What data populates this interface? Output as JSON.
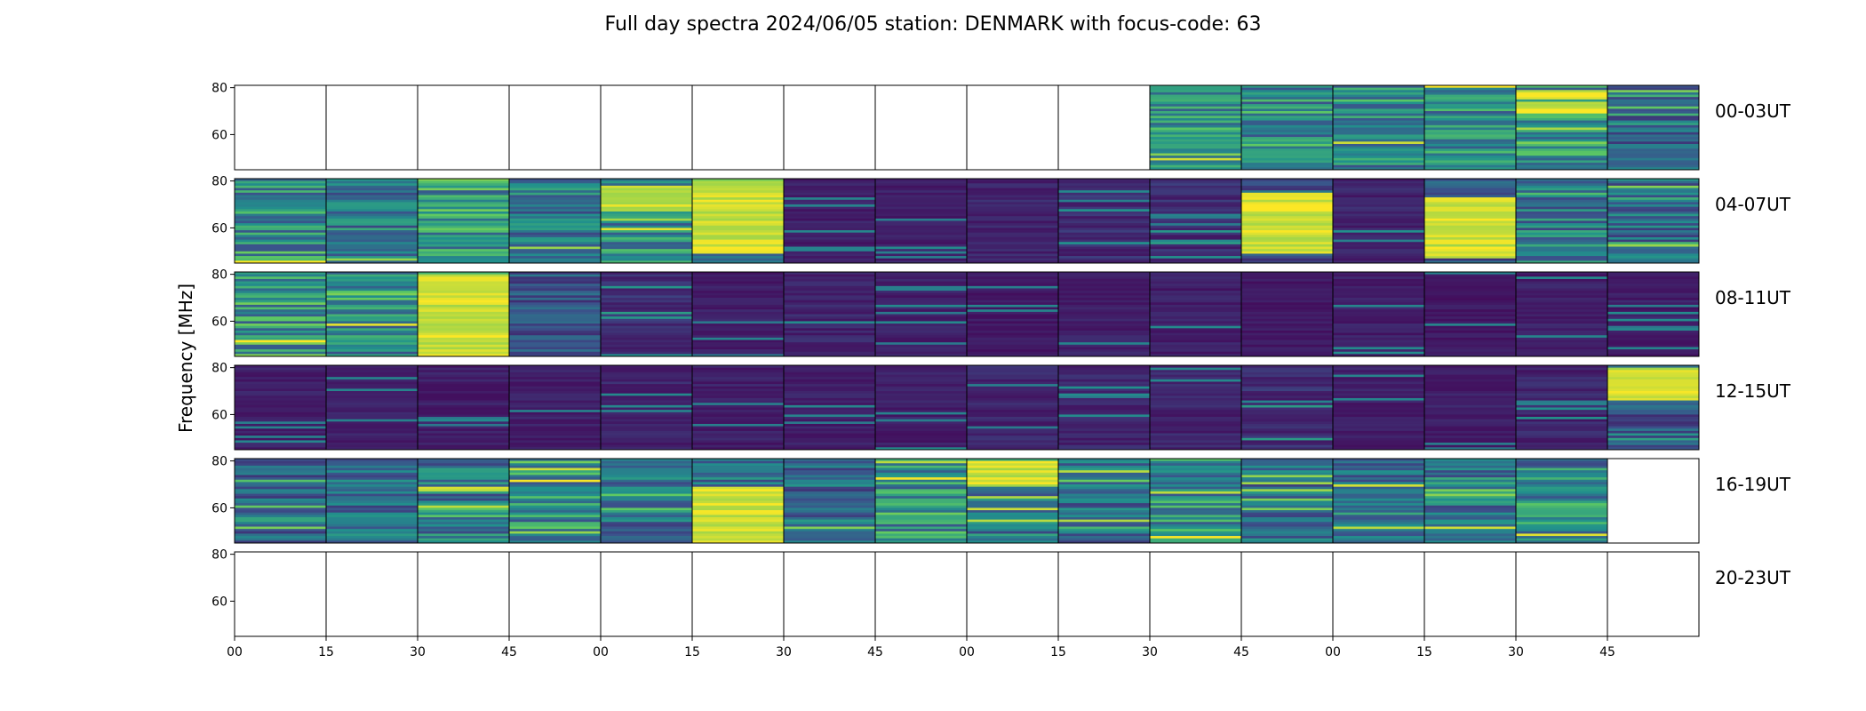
{
  "chart_data": {
    "type": "heatmap",
    "title": "Full day spectra 2024/06/05 station: DENMARK with focus-code: 63",
    "ylabel": "Frequency [MHz]",
    "xlabel": "",
    "ylim": [
      45,
      81
    ],
    "y_ticks": [
      "80",
      "60"
    ],
    "x_tick_labels": [
      "00",
      "15",
      "30",
      "45",
      "00",
      "15",
      "30",
      "45",
      "00",
      "15",
      "30",
      "45",
      "00",
      "15",
      "30",
      "45"
    ],
    "colormap": [
      "#440154",
      "#3b528b",
      "#21918c",
      "#5ec962",
      "#fde725"
    ],
    "rows": [
      {
        "label": "00-03UT",
        "panels": [
          {
            "empty": true
          },
          {
            "empty": true
          },
          {
            "empty": true
          },
          {
            "empty": true
          },
          {
            "empty": true
          },
          {
            "empty": true
          },
          {
            "empty": true
          },
          {
            "empty": true
          },
          {
            "empty": true
          },
          {
            "empty": true
          },
          {
            "level": 0.55
          },
          {
            "level": 0.55
          },
          {
            "level": 0.5
          },
          {
            "level": 0.55
          },
          {
            "level": 0.6,
            "bright_bands": [
              [
                70,
                74
              ],
              [
                76,
                79
              ]
            ]
          },
          {
            "level": 0.35
          }
        ]
      },
      {
        "label": "04-07UT",
        "panels": [
          {
            "level": 0.55
          },
          {
            "level": 0.45
          },
          {
            "level": 0.6
          },
          {
            "level": 0.45
          },
          {
            "level": 0.55,
            "bright_bands": [
              [
                68,
                78
              ]
            ]
          },
          {
            "level": 0.6,
            "bright_bands": [
              [
                50,
                80
              ]
            ]
          },
          {
            "level": 0.1
          },
          {
            "level": 0.1
          },
          {
            "level": 0.12
          },
          {
            "level": 0.15
          },
          {
            "level": 0.15
          },
          {
            "level": 0.3,
            "bright_bands": [
              [
                50,
                75
              ]
            ]
          },
          {
            "level": 0.12
          },
          {
            "level": 0.3,
            "bright_bands": [
              [
                48,
                73
              ]
            ]
          },
          {
            "level": 0.45
          },
          {
            "level": 0.4
          }
        ]
      },
      {
        "label": "08-11UT",
        "panels": [
          {
            "level": 0.6
          },
          {
            "level": 0.5
          },
          {
            "level": 0.7,
            "bright_bands": [
              [
                45,
                80
              ]
            ]
          },
          {
            "level": 0.3
          },
          {
            "level": 0.15
          },
          {
            "level": 0.1
          },
          {
            "level": 0.12
          },
          {
            "level": 0.1
          },
          {
            "level": 0.08
          },
          {
            "level": 0.1
          },
          {
            "level": 0.1
          },
          {
            "level": 0.08
          },
          {
            "level": 0.1
          },
          {
            "level": 0.08
          },
          {
            "level": 0.1
          },
          {
            "level": 0.1
          }
        ]
      },
      {
        "label": "12-15UT",
        "panels": [
          {
            "level": 0.1
          },
          {
            "level": 0.1
          },
          {
            "level": 0.1
          },
          {
            "level": 0.1
          },
          {
            "level": 0.12
          },
          {
            "level": 0.1
          },
          {
            "level": 0.1
          },
          {
            "level": 0.1
          },
          {
            "level": 0.12
          },
          {
            "level": 0.12
          },
          {
            "level": 0.12
          },
          {
            "level": 0.15
          },
          {
            "level": 0.1
          },
          {
            "level": 0.1
          },
          {
            "level": 0.12
          },
          {
            "level": 0.3,
            "bright_bands": [
              [
                67,
                80
              ]
            ]
          }
        ]
      },
      {
        "label": "16-19UT",
        "panels": [
          {
            "level": 0.35
          },
          {
            "level": 0.4
          },
          {
            "level": 0.45
          },
          {
            "level": 0.55
          },
          {
            "level": 0.4
          },
          {
            "level": 0.45,
            "bright_bands": [
              [
                46,
                69
              ]
            ]
          },
          {
            "level": 0.35
          },
          {
            "level": 0.55
          },
          {
            "level": 0.45,
            "bright_bands": [
              [
                70,
                80
              ]
            ]
          },
          {
            "level": 0.4
          },
          {
            "level": 0.55
          },
          {
            "level": 0.4
          },
          {
            "level": 0.45
          },
          {
            "level": 0.45
          },
          {
            "level": 0.45
          },
          {
            "empty": true
          }
        ]
      },
      {
        "label": "20-23UT",
        "panels": [
          {
            "empty": true
          },
          {
            "empty": true
          },
          {
            "empty": true
          },
          {
            "empty": true
          },
          {
            "empty": true
          },
          {
            "empty": true
          },
          {
            "empty": true
          },
          {
            "empty": true
          },
          {
            "empty": true
          },
          {
            "empty": true
          },
          {
            "empty": true
          },
          {
            "empty": true
          },
          {
            "empty": true
          },
          {
            "empty": true
          },
          {
            "empty": true
          },
          {
            "empty": true
          }
        ]
      }
    ]
  }
}
